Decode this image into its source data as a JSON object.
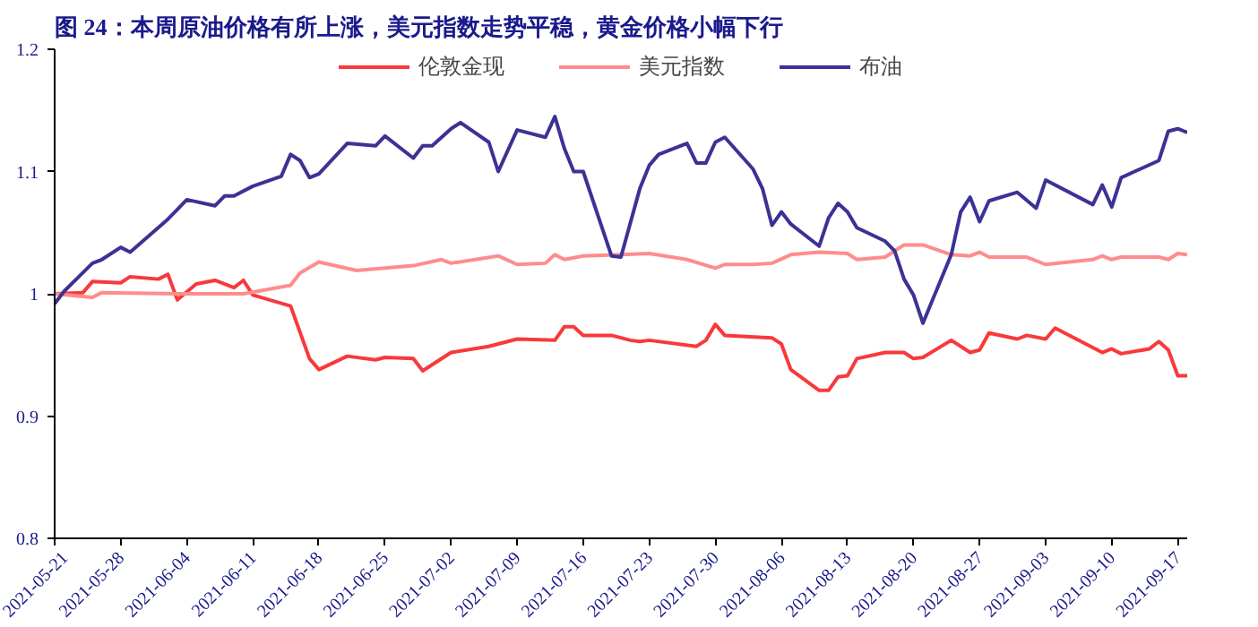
{
  "chart_data": {
    "type": "line",
    "title": "图 24：本周原油价格有所上涨，美元指数走势平稳，黄金价格小幅下行",
    "xlim": [
      "2021-05-21",
      "2021-09-18"
    ],
    "xticks": [
      "2021-05-21",
      "2021-05-28",
      "2021-06-04",
      "2021-06-11",
      "2021-06-18",
      "2021-06-25",
      "2021-07-02",
      "2021-07-09",
      "2021-07-16",
      "2021-07-23",
      "2021-07-30",
      "2021-08-06",
      "2021-08-13",
      "2021-08-20",
      "2021-08-27",
      "2021-09-03",
      "2021-09-10",
      "2021-09-17"
    ],
    "ylim": [
      0.8,
      1.2
    ],
    "yticks": [
      0.8,
      0.9,
      1,
      1.1,
      1.2
    ],
    "grid": false,
    "legend": "top",
    "series": [
      {
        "name": "伦敦金现",
        "color": "#f8393c",
        "x": [
          "2021-05-21",
          "2021-05-24",
          "2021-05-25",
          "2021-05-28",
          "2021-05-29",
          "2021-06-01",
          "2021-06-02",
          "2021-06-03",
          "2021-06-05",
          "2021-06-07",
          "2021-06-09",
          "2021-06-10",
          "2021-06-11",
          "2021-06-15",
          "2021-06-17",
          "2021-06-18",
          "2021-06-21",
          "2021-06-24",
          "2021-06-25",
          "2021-06-28",
          "2021-06-29",
          "2021-07-02",
          "2021-07-06",
          "2021-07-07",
          "2021-07-09",
          "2021-07-13",
          "2021-07-14",
          "2021-07-15",
          "2021-07-16",
          "2021-07-19",
          "2021-07-21",
          "2021-07-22",
          "2021-07-23",
          "2021-07-28",
          "2021-07-29",
          "2021-07-30",
          "2021-07-31",
          "2021-08-05",
          "2021-08-06",
          "2021-08-07",
          "2021-08-10",
          "2021-08-11",
          "2021-08-12",
          "2021-08-13",
          "2021-08-14",
          "2021-08-17",
          "2021-08-19",
          "2021-08-20",
          "2021-08-21",
          "2021-08-24",
          "2021-08-26",
          "2021-08-27",
          "2021-08-28",
          "2021-08-31",
          "2021-09-01",
          "2021-09-03",
          "2021-09-04",
          "2021-09-09",
          "2021-09-10",
          "2021-09-11",
          "2021-09-14",
          "2021-09-15",
          "2021-09-16",
          "2021-09-17",
          "2021-09-18"
        ],
        "values": [
          1.0,
          1.001,
          1.01,
          1.009,
          1.014,
          1.012,
          1.016,
          0.995,
          1.008,
          1.011,
          1.005,
          1.011,
          0.999,
          0.99,
          0.947,
          0.938,
          0.949,
          0.946,
          0.948,
          0.947,
          0.937,
          0.952,
          0.957,
          0.959,
          0.963,
          0.962,
          0.973,
          0.973,
          0.966,
          0.966,
          0.962,
          0.961,
          0.962,
          0.957,
          0.962,
          0.975,
          0.966,
          0.964,
          0.959,
          0.938,
          0.921,
          0.921,
          0.932,
          0.933,
          0.947,
          0.952,
          0.952,
          0.947,
          0.948,
          0.962,
          0.952,
          0.954,
          0.968,
          0.963,
          0.966,
          0.963,
          0.972,
          0.952,
          0.955,
          0.951,
          0.955,
          0.961,
          0.954,
          0.933,
          0.933
        ]
      },
      {
        "name": "美元指数",
        "color": "#ff8c8c",
        "x": [
          "2021-05-21",
          "2021-05-25",
          "2021-05-26",
          "2021-06-03",
          "2021-06-10",
          "2021-06-15",
          "2021-06-16",
          "2021-06-18",
          "2021-06-22",
          "2021-06-28",
          "2021-07-01",
          "2021-07-02",
          "2021-07-07",
          "2021-07-09",
          "2021-07-12",
          "2021-07-13",
          "2021-07-14",
          "2021-07-16",
          "2021-07-20",
          "2021-07-23",
          "2021-07-27",
          "2021-07-30",
          "2021-07-31",
          "2021-08-03",
          "2021-08-05",
          "2021-08-07",
          "2021-08-10",
          "2021-08-13",
          "2021-08-14",
          "2021-08-17",
          "2021-08-19",
          "2021-08-21",
          "2021-08-24",
          "2021-08-26",
          "2021-08-27",
          "2021-08-28",
          "2021-09-01",
          "2021-09-03",
          "2021-09-08",
          "2021-09-09",
          "2021-09-10",
          "2021-09-11",
          "2021-09-15",
          "2021-09-16",
          "2021-09-17",
          "2021-09-18"
        ],
        "values": [
          1.0,
          0.997,
          1.001,
          1.0,
          1.0,
          1.007,
          1.017,
          1.026,
          1.019,
          1.023,
          1.028,
          1.025,
          1.031,
          1.024,
          1.025,
          1.032,
          1.028,
          1.031,
          1.032,
          1.033,
          1.028,
          1.021,
          1.024,
          1.024,
          1.025,
          1.032,
          1.034,
          1.033,
          1.028,
          1.03,
          1.04,
          1.04,
          1.032,
          1.031,
          1.034,
          1.03,
          1.03,
          1.024,
          1.028,
          1.031,
          1.028,
          1.03,
          1.03,
          1.028,
          1.033,
          1.032
        ]
      },
      {
        "name": "布油",
        "color": "#3c3295",
        "x": [
          "2021-05-21",
          "2021-05-22",
          "2021-05-25",
          "2021-05-26",
          "2021-05-28",
          "2021-05-29",
          "2021-06-02",
          "2021-06-03",
          "2021-06-04",
          "2021-06-07",
          "2021-06-08",
          "2021-06-09",
          "2021-06-11",
          "2021-06-14",
          "2021-06-15",
          "2021-06-16",
          "2021-06-17",
          "2021-06-18",
          "2021-06-21",
          "2021-06-24",
          "2021-06-25",
          "2021-06-28",
          "2021-06-29",
          "2021-06-30",
          "2021-07-02",
          "2021-07-03",
          "2021-07-06",
          "2021-07-07",
          "2021-07-09",
          "2021-07-12",
          "2021-07-13",
          "2021-07-14",
          "2021-07-15",
          "2021-07-16",
          "2021-07-19",
          "2021-07-20",
          "2021-07-22",
          "2021-07-23",
          "2021-07-24",
          "2021-07-27",
          "2021-07-28",
          "2021-07-29",
          "2021-07-30",
          "2021-07-31",
          "2021-08-03",
          "2021-08-04",
          "2021-08-05",
          "2021-08-06",
          "2021-08-07",
          "2021-08-10",
          "2021-08-11",
          "2021-08-12",
          "2021-08-13",
          "2021-08-14",
          "2021-08-17",
          "2021-08-18",
          "2021-08-19",
          "2021-08-20",
          "2021-08-21",
          "2021-08-24",
          "2021-08-25",
          "2021-08-26",
          "2021-08-27",
          "2021-08-28",
          "2021-08-31",
          "2021-09-02",
          "2021-09-03",
          "2021-09-08",
          "2021-09-09",
          "2021-09-10",
          "2021-09-11",
          "2021-09-15",
          "2021-09-16",
          "2021-09-17",
          "2021-09-18"
        ],
        "values": [
          0.992,
          1.002,
          1.025,
          1.028,
          1.038,
          1.034,
          1.061,
          1.069,
          1.077,
          1.072,
          1.08,
          1.08,
          1.088,
          1.096,
          1.114,
          1.109,
          1.095,
          1.098,
          1.123,
          1.121,
          1.129,
          1.111,
          1.121,
          1.121,
          1.135,
          1.14,
          1.124,
          1.1,
          1.134,
          1.128,
          1.145,
          1.119,
          1.1,
          1.1,
          1.031,
          1.03,
          1.086,
          1.105,
          1.114,
          1.123,
          1.107,
          1.107,
          1.124,
          1.128,
          1.102,
          1.086,
          1.056,
          1.067,
          1.057,
          1.039,
          1.062,
          1.074,
          1.067,
          1.054,
          1.043,
          1.035,
          1.012,
          0.999,
          0.976,
          1.032,
          1.067,
          1.079,
          1.059,
          1.076,
          1.083,
          1.07,
          1.093,
          1.073,
          1.089,
          1.071,
          1.095,
          1.109,
          1.133,
          1.135,
          1.132
        ]
      }
    ]
  }
}
